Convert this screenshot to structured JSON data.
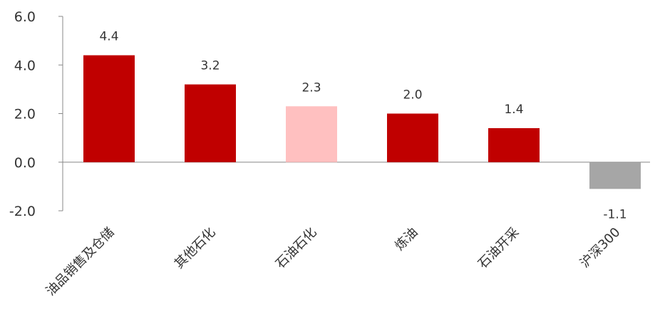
{
  "chart_data": {
    "type": "bar",
    "title": "",
    "xlabel": "",
    "ylabel": "",
    "categories": [
      "油品销售及仓储",
      "其他石化",
      "石油石化",
      "炼油",
      "石油开采",
      "沪深300"
    ],
    "values": [
      4.4,
      3.2,
      2.3,
      2.0,
      1.4,
      -1.1
    ],
    "value_labels": [
      "4.4",
      "3.2",
      "2.3",
      "2.0",
      "1.4",
      "-1.1"
    ],
    "bar_colors": [
      "#C00000",
      "#C00000",
      "#FFC0C0",
      "#C00000",
      "#C00000",
      "#A6A6A6"
    ],
    "ylim": [
      -2.0,
      6.0
    ],
    "yticks": [
      -2.0,
      0.0,
      2.0,
      4.0,
      6.0
    ],
    "ytick_labels": [
      "-2.0",
      "0.0",
      "2.0",
      "4.0",
      "6.0"
    ],
    "grid": false,
    "legend": "none"
  }
}
